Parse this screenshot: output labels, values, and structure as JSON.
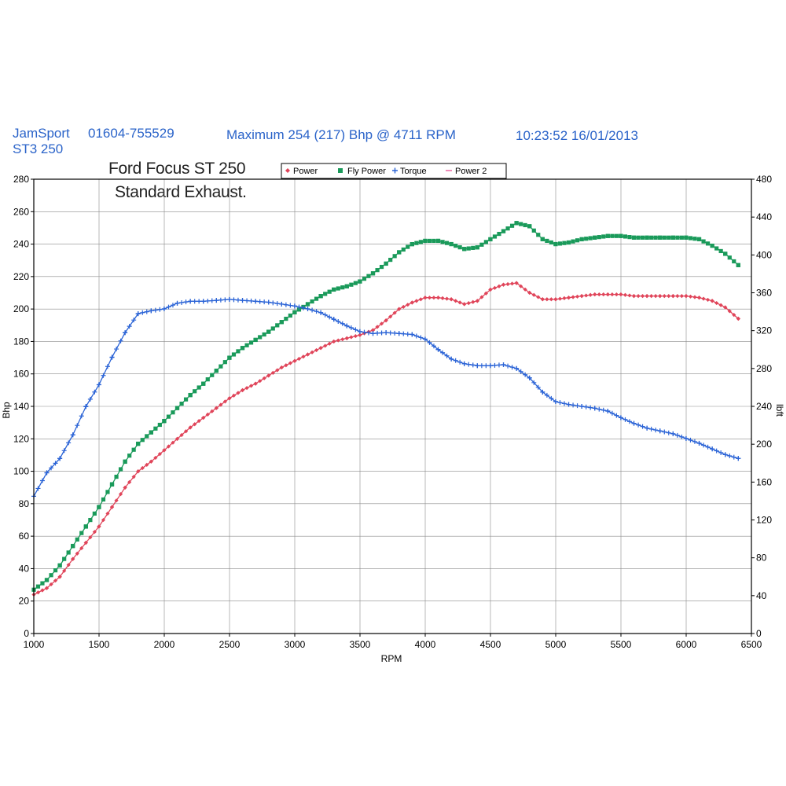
{
  "header": {
    "company": "JamSport",
    "phone": "01604-755529",
    "maximum": "Maximum 254 (217) Bhp @ 4711 RPM",
    "timestamp": "10:23:52 16/01/2013",
    "car_code": "ST3 250"
  },
  "annotation": {
    "line1": "Ford Focus ST 250",
    "line2": "Standard Exhaust."
  },
  "colors": {
    "header_text": "#2a63c9",
    "power": "#e0455a",
    "fly_power": "#1a9a5a",
    "torque": "#2a63d6",
    "power2": "#e85a9a",
    "grid": "#8a8a8a",
    "axis": "#000000"
  },
  "chart_data": {
    "type": "line",
    "title": "",
    "xlabel": "RPM",
    "ylabel": "Bhp",
    "y2label": "lbft",
    "xlim": [
      1000,
      6500
    ],
    "ylim": [
      0,
      280
    ],
    "y2lim": [
      0,
      480
    ],
    "x_ticks": [
      "1000",
      "1500",
      "2000",
      "2500",
      "3000",
      "3500",
      "4000",
      "4500",
      "5000",
      "5500",
      "6000",
      "6500"
    ],
    "y_ticks": [
      "0",
      "20",
      "40",
      "60",
      "80",
      "100",
      "120",
      "140",
      "160",
      "180",
      "200",
      "220",
      "240",
      "260",
      "280"
    ],
    "y2_ticks": [
      "0",
      "40",
      "80",
      "120",
      "160",
      "200",
      "240",
      "280",
      "320",
      "360",
      "400",
      "440",
      "480"
    ],
    "grid": true,
    "legend_position": "top-center",
    "legend": [
      "Power",
      "Fly Power",
      "Torque",
      "Power 2"
    ],
    "series": [
      {
        "name": "Power",
        "axis": "left",
        "x": [
          1000,
          1100,
          1200,
          1300,
          1400,
          1500,
          1600,
          1700,
          1800,
          1900,
          2000,
          2100,
          2200,
          2300,
          2400,
          2500,
          2600,
          2700,
          2800,
          2900,
          3000,
          3100,
          3200,
          3300,
          3400,
          3500,
          3600,
          3700,
          3800,
          3900,
          4000,
          4100,
          4200,
          4300,
          4400,
          4500,
          4600,
          4700,
          4800,
          4900,
          5000,
          5100,
          5200,
          5300,
          5400,
          5500,
          5600,
          5700,
          5800,
          5900,
          6000,
          6100,
          6200,
          6300,
          6400
        ],
        "values": [
          24,
          28,
          35,
          46,
          56,
          66,
          78,
          90,
          100,
          106,
          113,
          120,
          127,
          133,
          139,
          145,
          150,
          154,
          159,
          164,
          168,
          172,
          176,
          180,
          182,
          184,
          187,
          193,
          200,
          204,
          207,
          207,
          206,
          203,
          205,
          212,
          215,
          216,
          210,
          206,
          206,
          207,
          208,
          209,
          209,
          209,
          208,
          208,
          208,
          208,
          208,
          207,
          205,
          201,
          194
        ]
      },
      {
        "name": "Fly Power",
        "axis": "left",
        "x": [
          1000,
          1100,
          1200,
          1300,
          1400,
          1500,
          1600,
          1700,
          1800,
          1900,
          2000,
          2100,
          2200,
          2300,
          2400,
          2500,
          2600,
          2700,
          2800,
          2900,
          3000,
          3100,
          3200,
          3300,
          3400,
          3500,
          3600,
          3700,
          3800,
          3900,
          4000,
          4100,
          4200,
          4300,
          4400,
          4500,
          4600,
          4700,
          4800,
          4900,
          5000,
          5100,
          5200,
          5300,
          5400,
          5500,
          5600,
          5700,
          5800,
          5900,
          6000,
          6100,
          6200,
          6300,
          6400
        ],
        "values": [
          27,
          33,
          42,
          54,
          66,
          78,
          92,
          106,
          117,
          124,
          131,
          139,
          147,
          154,
          162,
          170,
          176,
          181,
          186,
          192,
          198,
          203,
          208,
          212,
          214,
          217,
          222,
          228,
          235,
          240,
          242,
          242,
          240,
          237,
          238,
          243,
          248,
          253,
          251,
          243,
          240,
          241,
          243,
          244,
          245,
          245,
          244,
          244,
          244,
          244,
          244,
          243,
          239,
          234,
          227
        ]
      },
      {
        "name": "Torque",
        "axis": "right",
        "x": [
          1000,
          1100,
          1200,
          1300,
          1400,
          1500,
          1600,
          1700,
          1800,
          1900,
          2000,
          2100,
          2200,
          2300,
          2400,
          2500,
          2600,
          2700,
          2800,
          2900,
          3000,
          3100,
          3200,
          3300,
          3400,
          3500,
          3600,
          3700,
          3800,
          3900,
          4000,
          4100,
          4200,
          4300,
          4400,
          4500,
          4600,
          4700,
          4800,
          4900,
          5000,
          5100,
          5200,
          5300,
          5400,
          5500,
          5600,
          5700,
          5800,
          5900,
          6000,
          6100,
          6200,
          6300,
          6400
        ],
        "values": [
          145,
          170,
          185,
          210,
          240,
          263,
          292,
          318,
          338,
          341,
          343,
          349,
          351,
          351,
          352,
          353,
          352,
          351,
          350,
          348,
          346,
          343,
          339,
          332,
          325,
          319,
          317,
          318,
          317,
          316,
          311,
          300,
          290,
          285,
          283,
          283,
          284,
          280,
          270,
          255,
          245,
          242,
          240,
          238,
          235,
          228,
          222,
          217,
          214,
          211,
          206,
          201,
          195,
          189,
          185
        ]
      },
      {
        "name": "Power 2",
        "axis": "left",
        "x": [],
        "values": []
      }
    ]
  }
}
